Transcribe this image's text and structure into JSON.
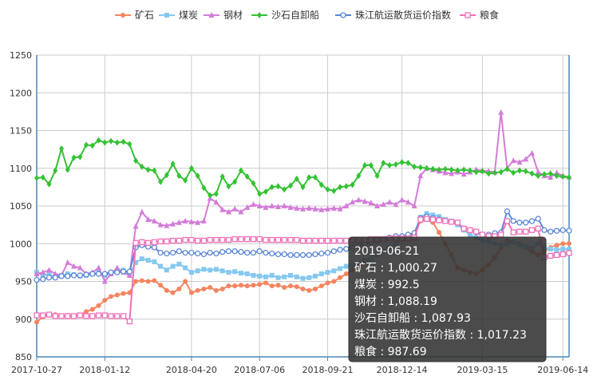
{
  "colors": {
    "ore": "#f4845f",
    "coal": "#85c8f0",
    "steel": "#d37cd8",
    "sand": "#33c233",
    "index": "#5b86d6",
    "grain": "#ef6fb7"
  },
  "chart_data": {
    "type": "line",
    "x": [
      "2017-10-27",
      "2017-11-03",
      "2017-11-10",
      "2017-11-17",
      "2017-11-24",
      "2017-12-01",
      "2017-12-08",
      "2017-12-15",
      "2017-12-22",
      "2017-12-29",
      "2018-01-05",
      "2018-01-12",
      "2018-01-19",
      "2018-01-26",
      "2018-02-02",
      "2018-02-09",
      "2018-02-16",
      "2018-02-23",
      "2018-03-02",
      "2018-03-09",
      "2018-03-16",
      "2018-03-23",
      "2018-03-30",
      "2018-04-06",
      "2018-04-13",
      "2018-04-20",
      "2018-04-27",
      "2018-05-04",
      "2018-05-11",
      "2018-05-18",
      "2018-05-25",
      "2018-06-01",
      "2018-06-08",
      "2018-06-15",
      "2018-06-22",
      "2018-06-29",
      "2018-07-06",
      "2018-07-13",
      "2018-07-20",
      "2018-07-27",
      "2018-08-03",
      "2018-08-10",
      "2018-08-17",
      "2018-08-24",
      "2018-08-31",
      "2018-09-07",
      "2018-09-14",
      "2018-09-21",
      "2018-09-28",
      "2018-10-05",
      "2018-10-12",
      "2018-10-19",
      "2018-10-26",
      "2018-11-02",
      "2018-11-09",
      "2018-11-16",
      "2018-11-23",
      "2018-11-30",
      "2018-12-07",
      "2018-12-14",
      "2018-12-21",
      "2018-12-28",
      "2019-01-04",
      "2019-01-11",
      "2019-01-18",
      "2019-01-25",
      "2019-02-01",
      "2019-02-08",
      "2019-02-15",
      "2019-02-22",
      "2019-03-01",
      "2019-03-08",
      "2019-03-15",
      "2019-03-22",
      "2019-03-29",
      "2019-04-05",
      "2019-04-12",
      "2019-04-19",
      "2019-04-26",
      "2019-05-03",
      "2019-05-10",
      "2019-05-17",
      "2019-05-24",
      "2019-05-31",
      "2019-06-07",
      "2019-06-14",
      "2019-06-21"
    ],
    "x_tick_labels": [
      "2017-10-27",
      "2018-01-12",
      "2018-04-20",
      "2018-07-06",
      "2018-09-21",
      "2018-12-14",
      "2019-03-15",
      "2019-06-14"
    ],
    "x_tick_indices": [
      0,
      11,
      25,
      36,
      47,
      59,
      72,
      85
    ],
    "ylim": [
      850,
      1250
    ],
    "y_ticks": [
      850,
      900,
      950,
      1000,
      1050,
      1100,
      1150,
      1200,
      1250
    ],
    "grid": true,
    "legend_position": "top-center",
    "series": [
      {
        "key": "ore",
        "name": "矿石",
        "marker": "circle",
        "values": [
          896,
          903,
          905,
          906,
          904,
          905,
          904,
          905,
          910,
          913,
          918,
          925,
          930,
          932,
          934,
          935,
          950,
          951,
          950,
          951,
          945,
          938,
          935,
          940,
          950,
          935,
          938,
          940,
          942,
          938,
          940,
          944,
          944,
          945,
          944,
          945,
          946,
          948,
          944,
          945,
          942,
          944,
          943,
          940,
          938,
          940,
          944,
          948,
          950,
          955,
          960,
          965,
          970,
          975,
          980,
          985,
          990,
          995,
          1000,
          1005,
          1010,
          1015,
          1030,
          1032,
          1028,
          1015,
          1000,
          985,
          968,
          965,
          962,
          960,
          965,
          972,
          982,
          995,
          1004,
          1002,
          1000,
          995,
          990,
          985,
          990,
          995,
          998,
          1000,
          1000.27
        ]
      },
      {
        "key": "coal",
        "name": "煤炭",
        "marker": "square",
        "values": [
          962,
          958,
          960,
          956,
          958,
          960,
          959,
          957,
          958,
          960,
          962,
          958,
          960,
          963,
          965,
          960,
          975,
          980,
          978,
          976,
          970,
          965,
          970,
          973,
          968,
          962,
          964,
          966,
          965,
          966,
          964,
          962,
          963,
          961,
          960,
          958,
          957,
          956,
          958,
          955,
          956,
          958,
          956,
          954,
          955,
          957,
          960,
          962,
          964,
          967,
          970,
          972,
          975,
          978,
          980,
          985,
          990,
          995,
          1000,
          1005,
          1008,
          1012,
          1035,
          1040,
          1038,
          1036,
          1032,
          1030,
          1025,
          1018,
          1012,
          1008,
          1005,
          1003,
          1000,
          998,
          1000,
          1002,
          998,
          996,
          994,
          1000,
          995,
          993,
          992,
          993,
          992.5
        ]
      },
      {
        "key": "steel",
        "name": "钢材",
        "marker": "triangle",
        "values": [
          960,
          962,
          965,
          960,
          958,
          975,
          970,
          968,
          960,
          962,
          968,
          950,
          960,
          968,
          962,
          958,
          1023,
          1042,
          1032,
          1030,
          1025,
          1024,
          1026,
          1028,
          1030,
          1029,
          1028,
          1030,
          1060,
          1055,
          1045,
          1042,
          1046,
          1042,
          1048,
          1052,
          1050,
          1048,
          1050,
          1049,
          1050,
          1048,
          1047,
          1046,
          1047,
          1046,
          1045,
          1046,
          1047,
          1046,
          1050,
          1055,
          1058,
          1056,
          1054,
          1050,
          1052,
          1055,
          1052,
          1058,
          1055,
          1050,
          1090,
          1100,
          1098,
          1096,
          1094,
          1093,
          1095,
          1092,
          1095,
          1098,
          1097,
          1096,
          1095,
          1174,
          1100,
          1110,
          1108,
          1112,
          1120,
          1095,
          1090,
          1088,
          1094,
          1090,
          1088.19
        ]
      },
      {
        "key": "sand",
        "name": "沙石自卸船",
        "marker": "diamond",
        "values": [
          1087,
          1088,
          1079,
          1097,
          1126,
          1098,
          1114,
          1115,
          1131,
          1130,
          1137,
          1134,
          1136,
          1134,
          1135,
          1132,
          1110,
          1102,
          1098,
          1097,
          1082,
          1091,
          1106,
          1090,
          1084,
          1100,
          1090,
          1074,
          1064,
          1066,
          1089,
          1076,
          1082,
          1097,
          1089,
          1080,
          1066,
          1069,
          1075,
          1076,
          1072,
          1077,
          1086,
          1075,
          1088,
          1088,
          1078,
          1072,
          1070,
          1075,
          1076,
          1078,
          1090,
          1104,
          1104,
          1090,
          1107,
          1104,
          1105,
          1108,
          1107,
          1102,
          1101,
          1100,
          1099,
          1098,
          1099,
          1098,
          1097,
          1098,
          1097,
          1095,
          1096,
          1093,
          1094,
          1095,
          1099,
          1094,
          1097,
          1096,
          1093,
          1090,
          1092,
          1093,
          1090,
          1089,
          1087.93
        ]
      },
      {
        "key": "index",
        "name": "珠江航运散货运价指数",
        "marker": "circle-hollow",
        "values": [
          952,
          953,
          955,
          955,
          957,
          957,
          958,
          958,
          959,
          960,
          960,
          960,
          962,
          962,
          963,
          963,
          995,
          998,
          996,
          995,
          988,
          987,
          988,
          990,
          988,
          988,
          987,
          986,
          988,
          987,
          989,
          990,
          990,
          989,
          988,
          988,
          990,
          988,
          987,
          986,
          986,
          985,
          985,
          985,
          985,
          986,
          987,
          988,
          990,
          992,
          993,
          995,
          997,
          1000,
          1002,
          1004,
          1006,
          1008,
          1010,
          1010,
          1012,
          1014,
          1034,
          1036,
          1034,
          1032,
          1030,
          1029,
          1028,
          1020,
          1018,
          1015,
          1012,
          1012,
          1014,
          1015,
          1043,
          1030,
          1028,
          1028,
          1030,
          1033,
          1018,
          1016,
          1017,
          1018,
          1017.23
        ]
      },
      {
        "key": "grain",
        "name": "粮食",
        "marker": "square-hollow",
        "values": [
          905,
          905,
          906,
          904,
          904,
          904,
          904,
          905,
          904,
          904,
          905,
          905,
          904,
          904,
          904,
          897,
          1001,
          1002,
          1001,
          1002,
          1003,
          1003,
          1004,
          1004,
          1005,
          1005,
          1004,
          1004,
          1005,
          1005,
          1005,
          1005,
          1006,
          1006,
          1006,
          1006,
          1006,
          1005,
          1005,
          1005,
          1005,
          1005,
          1005,
          1004,
          1004,
          1004,
          1004,
          1004,
          1004,
          1004,
          1004,
          1005,
          1005,
          1005,
          1006,
          1006,
          1006,
          1007,
          1007,
          1007,
          1007,
          1008,
          1032,
          1033,
          1032,
          1031,
          1030,
          1029,
          1028,
          1020,
          1018,
          1016,
          1012,
          1010,
          1010,
          1012,
          1030,
          1015,
          1016,
          1016,
          1018,
          1020,
          982,
          984,
          985,
          986,
          987.69
        ]
      }
    ],
    "tooltip": {
      "date": "2019-06-21",
      "rows": [
        {
          "key": "ore",
          "text": "矿石 : 1,000.27"
        },
        {
          "key": "coal",
          "text": "煤炭 : 992.5"
        },
        {
          "key": "steel",
          "text": "钢材 : 1,088.19"
        },
        {
          "key": "sand",
          "text": "沙石自卸船 : 1,087.93"
        },
        {
          "key": "index",
          "text": "珠江航运散货运价指数 : 1,017.23"
        },
        {
          "key": "grain",
          "text": "粮食 : 987.69"
        }
      ]
    }
  }
}
